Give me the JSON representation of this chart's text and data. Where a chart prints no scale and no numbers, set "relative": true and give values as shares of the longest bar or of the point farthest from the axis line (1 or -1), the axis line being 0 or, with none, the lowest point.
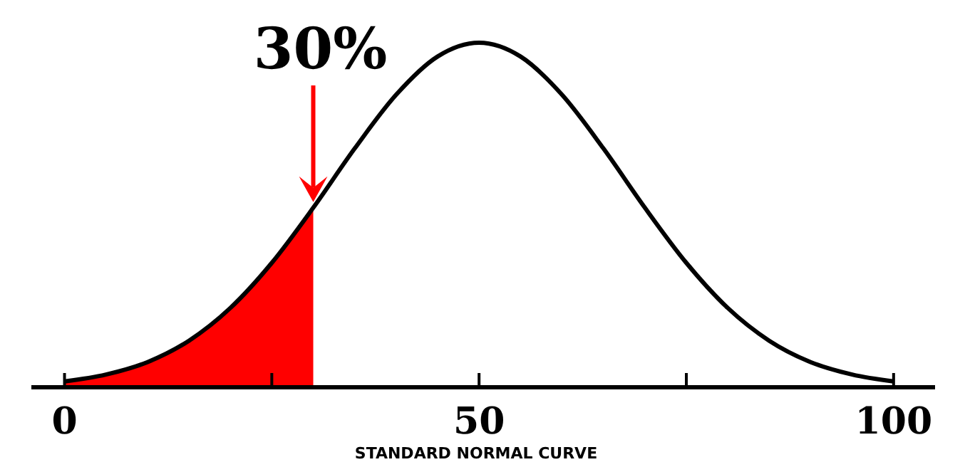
{
  "chart_data": {
    "type": "line",
    "relative": true,
    "xlabel": "STANDARD NORMAL CURVE",
    "xlim": [
      -4,
      105
    ],
    "xticks": [
      0,
      {
        "value": 25,
        "label": null
      },
      50,
      {
        "value": 75,
        "label": null
      },
      100
    ],
    "series": [
      {
        "type": "area",
        "color": "#ff0000",
        "x": [
          0,
          5,
          10,
          15,
          20,
          25,
          30
        ],
        "values": [
          0.017,
          0.037,
          0.073,
          0.135,
          0.23,
          0.361,
          0.521
        ]
      },
      {
        "color": "#000000",
        "x": [
          0,
          5,
          10,
          15,
          20,
          25,
          30,
          35,
          40,
          45,
          50,
          55,
          60,
          65,
          70,
          75,
          80,
          85,
          90,
          95,
          100
        ],
        "values": [
          0.017,
          0.037,
          0.073,
          0.135,
          0.23,
          0.361,
          0.521,
          0.693,
          0.849,
          0.96,
          1,
          0.96,
          0.849,
          0.693,
          0.521,
          0.361,
          0.23,
          0.135,
          0.073,
          0.037,
          0.017
        ]
      }
    ],
    "annotations": [
      {
        "text": "30%",
        "x": 30,
        "y": 0.521
      }
    ]
  }
}
